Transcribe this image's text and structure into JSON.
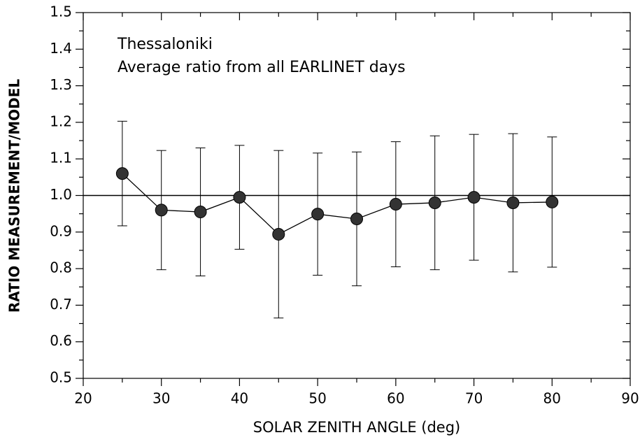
{
  "chart_data": {
    "type": "errorbar",
    "annotations": [
      "Thessaloniki",
      "Average ratio from all EARLINET days"
    ],
    "xlabel": "SOLAR ZENITH ANGLE (deg)",
    "ylabel": "RATIO MEASUREMENT/MODEL",
    "x": [
      25,
      30,
      35,
      40,
      45,
      50,
      55,
      60,
      65,
      70,
      75,
      80
    ],
    "series": [
      {
        "color": "#333333",
        "values": [
          1.06,
          0.96,
          0.955,
          0.995,
          0.894,
          0.949,
          0.936,
          0.976,
          0.98,
          0.995,
          0.98,
          0.982
        ],
        "errors": [
          0.143,
          0.163,
          0.175,
          0.142,
          0.229,
          0.167,
          0.183,
          0.171,
          0.183,
          0.172,
          0.189,
          0.178
        ]
      }
    ],
    "reference_line": 1,
    "xlim": [
      20,
      90
    ],
    "xticks": [
      20,
      30,
      40,
      50,
      60,
      70,
      80,
      90
    ],
    "x_minor_ticks": [
      25,
      35,
      45,
      55,
      65,
      75,
      85
    ],
    "ylim": [
      0.5,
      1.5
    ],
    "yticks": [
      0.5,
      0.6,
      0.7,
      0.8,
      0.9,
      {
        "value": 1,
        "label": "1.0"
      },
      1.1,
      1.2,
      1.3,
      1.4,
      1.5
    ],
    "y_minor_ticks": [
      0.55,
      0.65,
      0.75,
      0.85,
      0.95,
      1.05,
      1.15,
      1.25,
      1.35,
      1.45
    ]
  }
}
